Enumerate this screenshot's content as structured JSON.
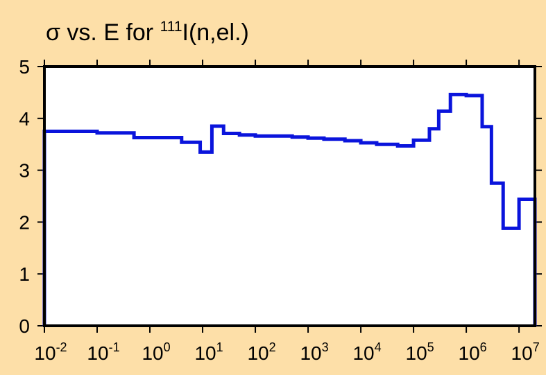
{
  "chart_data": {
    "type": "line",
    "step": true,
    "title": {
      "prefix": "σ vs. E for ",
      "superscript": "111",
      "suffix": "I(n,el.)"
    },
    "xlabel": "",
    "ylabel": "",
    "x_scale": "log",
    "xlim": [
      0.01,
      20000000
    ],
    "ylim": [
      0,
      5
    ],
    "x_ticks": [
      {
        "base": "10",
        "exp": "-2",
        "value": 0.01
      },
      {
        "base": "10",
        "exp": "-1",
        "value": 0.1
      },
      {
        "base": "10",
        "exp": "0",
        "value": 1
      },
      {
        "base": "10",
        "exp": "1",
        "value": 10
      },
      {
        "base": "10",
        "exp": "2",
        "value": 100
      },
      {
        "base": "10",
        "exp": "3",
        "value": 1000
      },
      {
        "base": "10",
        "exp": "4",
        "value": 10000
      },
      {
        "base": "10",
        "exp": "5",
        "value": 100000
      },
      {
        "base": "10",
        "exp": "6",
        "value": 1000000
      },
      {
        "base": "10",
        "exp": "7",
        "value": 10000000
      }
    ],
    "y_ticks": [
      "0",
      "1",
      "2",
      "3",
      "4",
      "5"
    ],
    "grid": false,
    "legend": "none",
    "colors": {
      "background": "#fddfa8",
      "plot_area": "#ffffff",
      "line": "#0a14dc",
      "frame": "#000000"
    },
    "series": [
      {
        "x": [
          0.01,
          0.1,
          0.5,
          4,
          9,
          15,
          25,
          50,
          100,
          500,
          1000,
          2000,
          5000,
          10000,
          20000,
          50000,
          100000,
          200000,
          300000,
          500000,
          1000000,
          2000000,
          3000000,
          5000000,
          10000000,
          20000000
        ],
        "y": [
          3.75,
          3.72,
          3.63,
          3.54,
          3.35,
          3.85,
          3.71,
          3.68,
          3.66,
          3.64,
          3.62,
          3.6,
          3.57,
          3.53,
          3.5,
          3.47,
          3.58,
          3.8,
          4.14,
          4.46,
          4.44,
          3.84,
          2.75,
          1.88,
          2.44,
          0
        ]
      }
    ]
  }
}
